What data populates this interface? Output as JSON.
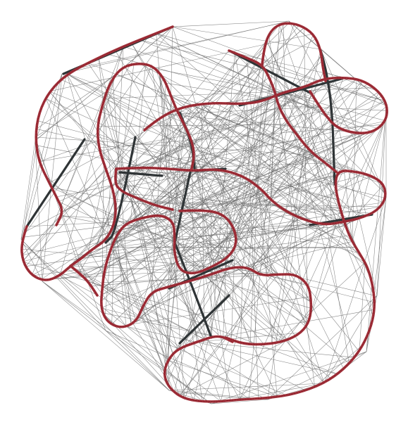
{
  "figure": {
    "type": "network-graph",
    "background_color": "#ffffff",
    "node_color": "#a3313a",
    "edge_color": "#6e6e6e",
    "bundle_color": "#2f3436",
    "description_visible_text": ""
  }
}
